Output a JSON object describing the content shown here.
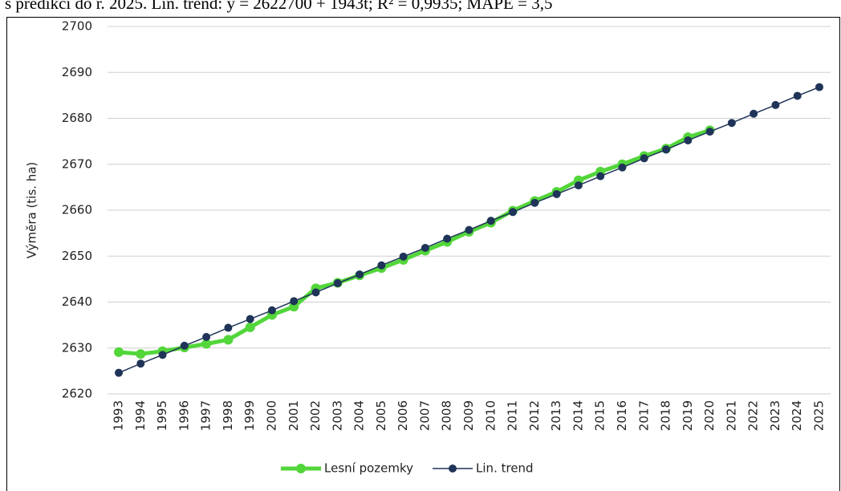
{
  "chart_data": {
    "type": "line",
    "title": "s predikcí do r. 2025. Lin. trend: y = 2622700 + 1943t; R² = 0,9935; MAPE = 3,5",
    "y_label": "Výměra (tis. ha)",
    "categories": [
      "1993",
      "1994",
      "1995",
      "1996",
      "1997",
      "1998",
      "1999",
      "2000",
      "2001",
      "2002",
      "2003",
      "2004",
      "2005",
      "2006",
      "2007",
      "2008",
      "2009",
      "2010",
      "2011",
      "2012",
      "2013",
      "2014",
      "2015",
      "2016",
      "2017",
      "2018",
      "2019",
      "2020",
      "2021",
      "2022",
      "2023",
      "2024",
      "2025"
    ],
    "series": [
      {
        "name": "Lesní pozemky",
        "color": "#52d63a",
        "width": 5,
        "marker": 6,
        "values": [
          2629.1,
          2628.7,
          2629.3,
          2630.1,
          2630.9,
          2631.8,
          2634.5,
          2637.2,
          2639.0,
          2643.0,
          2644.2,
          2645.8,
          2647.4,
          2649.2,
          2651.2,
          2653.1,
          2655.3,
          2657.3,
          2659.9,
          2662.0,
          2664.0,
          2666.5,
          2668.4,
          2670.0,
          2671.8,
          2673.4,
          2675.9,
          2677.4,
          null,
          null,
          null,
          null,
          null
        ]
      },
      {
        "name": "Lin. trend",
        "color": "#1f3458",
        "width": 1.5,
        "marker": 5,
        "values": [
          2624.6,
          2626.6,
          2628.5,
          2630.5,
          2632.4,
          2634.4,
          2636.3,
          2638.2,
          2640.2,
          2642.1,
          2644.1,
          2646.0,
          2648.0,
          2649.9,
          2651.8,
          2653.8,
          2655.7,
          2657.7,
          2659.6,
          2661.6,
          2663.5,
          2665.4,
          2667.4,
          2669.3,
          2671.3,
          2673.2,
          2675.2,
          2677.1,
          2679.0,
          2681.0,
          2682.9,
          2684.9,
          2686.8
        ]
      }
    ],
    "ylim": [
      2620,
      2700
    ],
    "yticks": [
      2620,
      2630,
      2640,
      2650,
      2660,
      2670,
      2680,
      2690,
      2700
    ],
    "grid": true,
    "legend": "bottom"
  }
}
